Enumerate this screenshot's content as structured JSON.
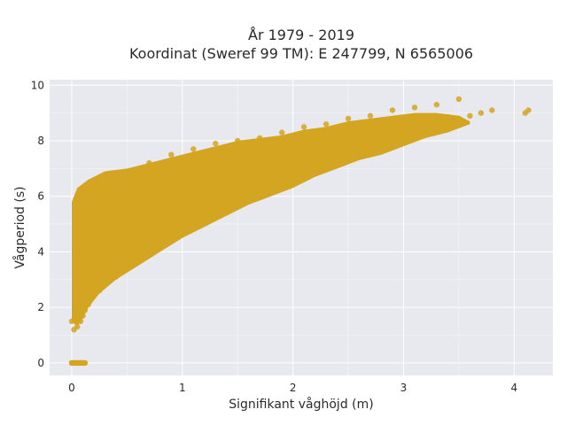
{
  "chart_data": {
    "type": "scatter",
    "title_lines": [
      "År 1979 - 2019",
      "Koordinat (Sweref 99 TM): E 247799, N 6565006"
    ],
    "xlabel": "Signifikant våghöjd (m)",
    "ylabel": "Vågperiod (s)",
    "xlim": [
      -0.2,
      4.35
    ],
    "ylim": [
      -0.45,
      10.2
    ],
    "x_ticks": [
      0,
      1,
      2,
      3,
      4
    ],
    "x_tick_labels": [
      "0",
      "1",
      "2",
      "3",
      "4"
    ],
    "y_ticks": [
      0,
      2,
      4,
      6,
      8,
      10
    ],
    "y_tick_labels": [
      "0",
      "2",
      "4",
      "6",
      "8",
      "10"
    ],
    "grid": true,
    "marker_color": "#D4A521",
    "background_color": "#E8E8EF",
    "series": [
      {
        "description": "dense point cloud, sampled envelope",
        "x": [
          0.0,
          0.02,
          0.04,
          0.06,
          0.08,
          0.1,
          0.0,
          0.02,
          0.05,
          0.08,
          0.1,
          0.12,
          0.15,
          0.2,
          0.25,
          0.3,
          0.4,
          0.5,
          0.6,
          0.7,
          0.8,
          0.9,
          1.0,
          1.1,
          1.2,
          1.3,
          1.4,
          1.5,
          1.6,
          1.7,
          1.8,
          1.9,
          2.0,
          2.1,
          2.2,
          2.3,
          2.4,
          2.5,
          2.6,
          2.7,
          2.8,
          2.9,
          3.0,
          3.1,
          3.2,
          3.3,
          3.4,
          3.5,
          3.6,
          3.7,
          3.8,
          4.1,
          4.13,
          0.3,
          0.5,
          0.7,
          0.9,
          1.1,
          1.3,
          1.5,
          1.7,
          1.9,
          2.1,
          2.3,
          2.5,
          2.7,
          2.9,
          3.1,
          3.3,
          3.5,
          1.0,
          1.5,
          2.0,
          2.5,
          3.0,
          3.5,
          0.6,
          0.8,
          1.2,
          0.4,
          0.2,
          0.15,
          0.1,
          0.05
        ],
        "y": [
          0.0,
          0.0,
          0.0,
          0.0,
          0.0,
          0.0,
          1.5,
          1.2,
          1.3,
          1.5,
          1.7,
          1.9,
          2.1,
          2.4,
          2.6,
          2.9,
          3.1,
          3.5,
          3.8,
          4.1,
          4.4,
          4.7,
          4.9,
          5.2,
          5.5,
          5.7,
          6.0,
          6.2,
          6.4,
          6.6,
          6.8,
          6.9,
          7.1,
          7.3,
          7.4,
          7.6,
          7.7,
          7.8,
          7.9,
          8.0,
          8.2,
          8.3,
          8.4,
          8.5,
          8.5,
          8.6,
          8.7,
          8.8,
          8.9,
          9.0,
          9.1,
          9.0,
          9.1,
          6.4,
          6.8,
          7.2,
          7.5,
          7.7,
          7.9,
          8.0,
          8.1,
          8.3,
          8.5,
          8.6,
          8.8,
          8.9,
          9.1,
          9.2,
          9.3,
          9.5,
          6.0,
          7.0,
          7.5,
          8.0,
          8.4,
          8.8,
          5.0,
          5.5,
          6.2,
          4.2,
          3.5,
          3.0,
          2.5,
          2.0
        ]
      }
    ]
  }
}
